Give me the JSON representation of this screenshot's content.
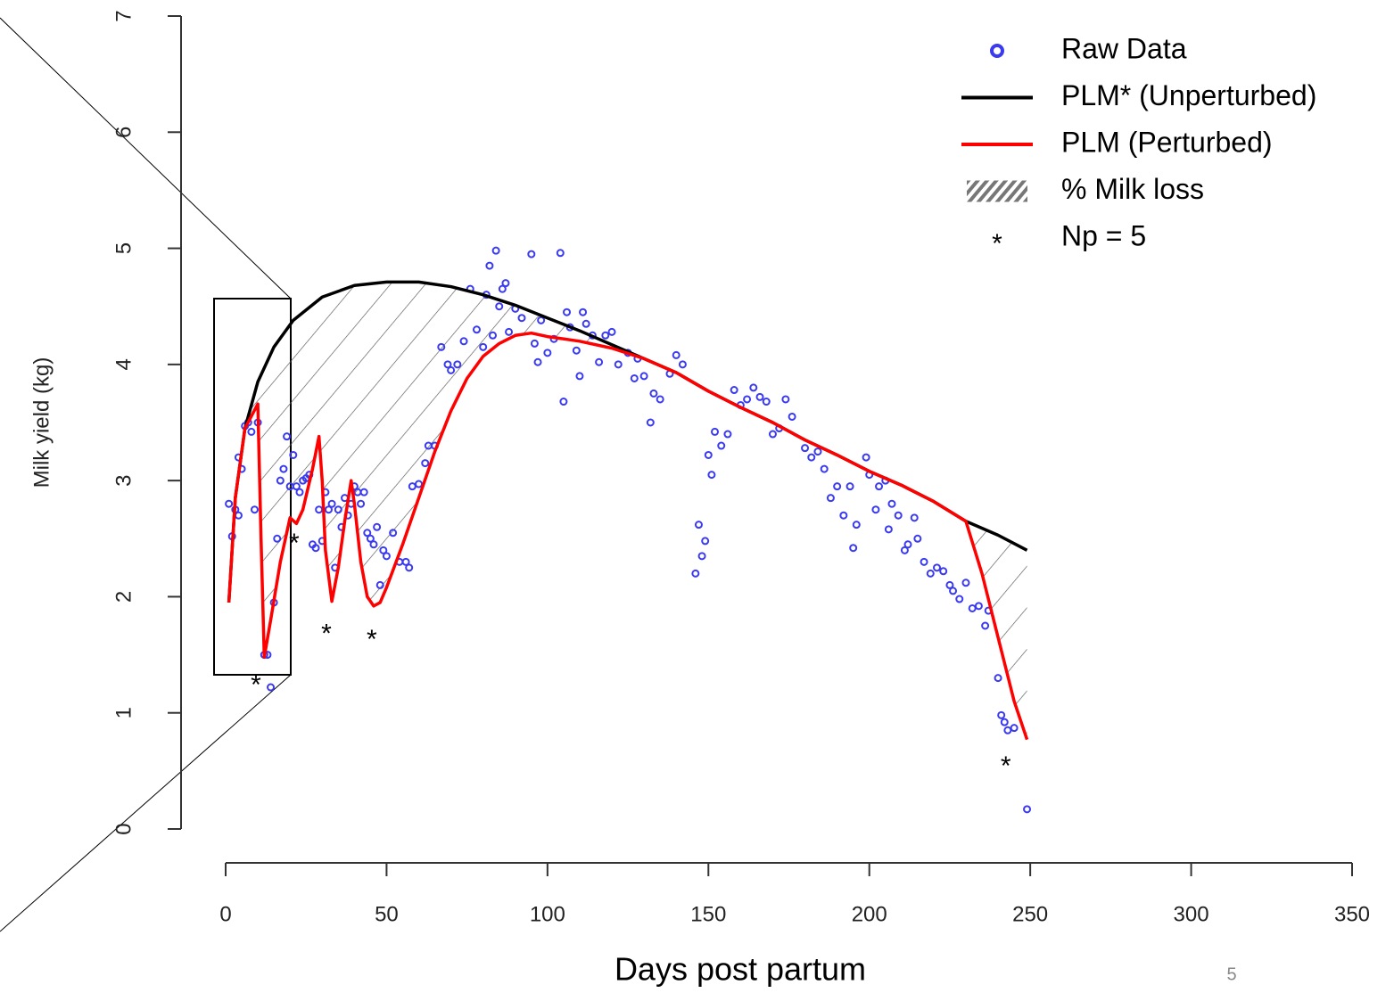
{
  "chart_data": {
    "type": "line",
    "xlabel": "Days post partum",
    "ylabel": "Milk yield (kg)",
    "page_number": "5",
    "xlim": [
      0,
      350
    ],
    "xticks": [
      0,
      50,
      100,
      150,
      200,
      250,
      300,
      350
    ],
    "ylim": [
      0,
      7
    ],
    "yticks": [
      0,
      1,
      2,
      3,
      4,
      5,
      6,
      7
    ],
    "legend": "top-right",
    "series": [
      {
        "name": "Raw Data",
        "style": "points",
        "color": "#3a3af0",
        "x": [
          1,
          2,
          3,
          4,
          4,
          5,
          6,
          7,
          8,
          9,
          10,
          12,
          13,
          14,
          15,
          16,
          17,
          18,
          19,
          20,
          21,
          22,
          23,
          24,
          25,
          26,
          27,
          28,
          29,
          30,
          31,
          32,
          33,
          34,
          35,
          36,
          37,
          38,
          39,
          40,
          41,
          42,
          43,
          44,
          45,
          46,
          47,
          48,
          49,
          50,
          52,
          54,
          56,
          57,
          58,
          60,
          62,
          63,
          65,
          67,
          69,
          70,
          72,
          74,
          76,
          78,
          80,
          81,
          82,
          83,
          84,
          85,
          86,
          87,
          88,
          90,
          92,
          95,
          96,
          97,
          98,
          100,
          102,
          104,
          105,
          106,
          107,
          109,
          110,
          111,
          112,
          114,
          116,
          118,
          120,
          122,
          125,
          127,
          128,
          130,
          132,
          133,
          135,
          138,
          140,
          142,
          146,
          147,
          148,
          149,
          150,
          151,
          152,
          154,
          156,
          158,
          160,
          162,
          164,
          166,
          168,
          170,
          172,
          174,
          176,
          180,
          182,
          184,
          186,
          188,
          190,
          192,
          194,
          195,
          196,
          199,
          200,
          202,
          203,
          205,
          206,
          207,
          209,
          211,
          212,
          214,
          215,
          217,
          219,
          221,
          223,
          225,
          226,
          228,
          230,
          232,
          234,
          236,
          237,
          240,
          241,
          242,
          243,
          245,
          249
        ],
        "values": [
          2.8,
          2.52,
          2.75,
          2.7,
          3.2,
          3.1,
          3.47,
          3.5,
          3.42,
          2.75,
          3.5,
          1.5,
          1.5,
          1.22,
          1.95,
          2.5,
          3.0,
          3.1,
          3.38,
          2.95,
          3.22,
          2.95,
          2.9,
          3.0,
          3.02,
          3.05,
          2.45,
          2.42,
          2.75,
          2.48,
          2.9,
          2.75,
          2.8,
          2.25,
          2.75,
          2.6,
          2.85,
          2.7,
          2.8,
          2.95,
          2.9,
          2.8,
          2.9,
          2.55,
          2.5,
          2.45,
          2.6,
          2.1,
          2.4,
          2.35,
          2.55,
          2.3,
          2.3,
          2.25,
          2.95,
          2.97,
          3.15,
          3.3,
          3.3,
          4.15,
          4.0,
          3.95,
          4.0,
          4.2,
          4.65,
          4.3,
          4.15,
          4.6,
          4.85,
          4.25,
          4.98,
          4.5,
          4.65,
          4.7,
          4.28,
          4.48,
          4.4,
          4.95,
          4.18,
          4.02,
          4.38,
          4.1,
          4.22,
          4.96,
          3.68,
          4.45,
          4.32,
          4.12,
          3.9,
          4.45,
          4.35,
          4.25,
          4.02,
          4.25,
          4.28,
          4.0,
          4.1,
          3.88,
          4.05,
          3.9,
          3.5,
          3.75,
          3.7,
          3.92,
          4.08,
          4.0,
          2.2,
          2.62,
          2.35,
          2.48,
          3.22,
          3.05,
          3.42,
          3.3,
          3.4,
          3.78,
          3.65,
          3.7,
          3.8,
          3.72,
          3.68,
          3.4,
          3.45,
          3.7,
          3.55,
          3.28,
          3.2,
          3.25,
          3.1,
          2.85,
          2.95,
          2.7,
          2.95,
          2.42,
          2.62,
          3.2,
          3.05,
          2.75,
          2.95,
          3.0,
          2.58,
          2.8,
          2.7,
          2.4,
          2.45,
          2.68,
          2.5,
          2.3,
          2.2,
          2.25,
          2.22,
          2.1,
          2.05,
          1.98,
          2.12,
          1.9,
          1.92,
          1.75,
          1.88,
          1.3,
          0.98,
          0.92,
          0.85,
          0.87,
          0.17
        ]
      },
      {
        "name": "PLM* (Unperturbed)",
        "style": "line",
        "color": "#000000",
        "x": [
          1,
          3,
          6,
          10,
          15,
          21,
          30,
          40,
          50,
          60,
          70,
          80,
          90,
          100,
          110,
          120,
          130,
          140,
          150,
          160,
          170,
          180,
          190,
          200,
          210,
          220,
          230,
          240,
          249
        ],
        "values": [
          1.95,
          2.85,
          3.45,
          3.85,
          4.15,
          4.38,
          4.58,
          4.68,
          4.71,
          4.71,
          4.67,
          4.6,
          4.51,
          4.4,
          4.29,
          4.17,
          4.05,
          3.93,
          3.77,
          3.63,
          3.5,
          3.35,
          3.22,
          3.08,
          2.96,
          2.82,
          2.65,
          2.53,
          2.4
        ]
      },
      {
        "name": "PLM (Perturbed)",
        "style": "line",
        "color": "#ff0000",
        "x": [
          1,
          3,
          6,
          10,
          11,
          12,
          14,
          17,
          20,
          22,
          24,
          27,
          29,
          30,
          31,
          33,
          35,
          37,
          39,
          40,
          42,
          44,
          46,
          48,
          50,
          55,
          60,
          65,
          70,
          75,
          80,
          85,
          90,
          95,
          100,
          110,
          120,
          130,
          140,
          150,
          160,
          170,
          180,
          190,
          200,
          210,
          220,
          230,
          235,
          240,
          245,
          249
        ],
        "values": [
          1.95,
          2.85,
          3.45,
          3.66,
          2.5,
          1.48,
          1.8,
          2.3,
          2.68,
          2.63,
          2.75,
          3.1,
          3.38,
          3.0,
          2.4,
          1.96,
          2.25,
          2.65,
          3.0,
          2.8,
          2.3,
          2.0,
          1.92,
          1.95,
          2.08,
          2.45,
          2.85,
          3.25,
          3.6,
          3.88,
          4.07,
          4.18,
          4.25,
          4.27,
          4.24,
          4.2,
          4.14,
          4.05,
          3.93,
          3.77,
          3.63,
          3.5,
          3.35,
          3.22,
          3.08,
          2.96,
          2.82,
          2.65,
          2.2,
          1.65,
          1.1,
          0.77
        ]
      }
    ],
    "hatch_label": "% Milk loss",
    "marker": "*",
    "marker_label": "Np = 5",
    "perturbations": {
      "x": [
        9.4,
        21.3,
        31.3,
        45.4,
        242.4
      ],
      "values": [
        1.29,
        2.51,
        1.73,
        1.68,
        0.59
      ]
    }
  }
}
